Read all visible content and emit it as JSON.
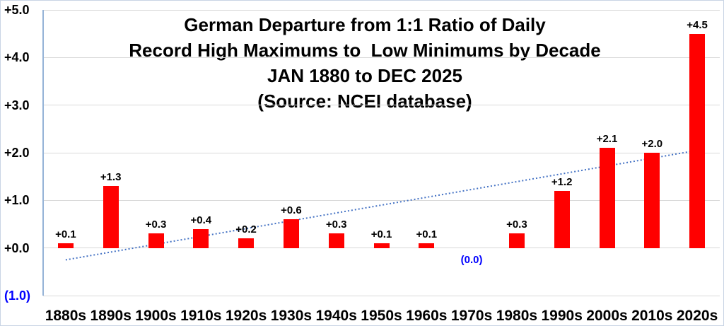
{
  "chart_data": {
    "type": "bar",
    "title_lines": [
      "German Departure from 1:1 Ratio of Daily",
      "Record High Maximums to  Low Minimums by Decade",
      "JAN 1880 to DEC 2025",
      "(Source: NCEI database)"
    ],
    "categories": [
      "1880s",
      "1890s",
      "1900s",
      "1910s",
      "1920s",
      "1930s",
      "1940s",
      "1950s",
      "1960s",
      "1970s",
      "1980s",
      "1990s",
      "2000s",
      "2010s",
      "2020s"
    ],
    "values": [
      0.1,
      1.3,
      0.3,
      0.4,
      0.2,
      0.6,
      0.3,
      0.1,
      0.1,
      0.0,
      0.3,
      1.2,
      2.1,
      2.0,
      4.5
    ],
    "bar_labels": [
      "+0.1",
      "+1.3",
      "+0.3",
      "+0.4",
      "+0.2",
      "+0.6",
      "+0.3",
      "+0.1",
      "+0.1",
      "(0.0)",
      "+0.3",
      "+1.2",
      "+2.1",
      "+2.0",
      "+4.5"
    ],
    "y_ticks": [
      {
        "label": "+5.0",
        "value": 5
      },
      {
        "label": "+4.0",
        "value": 4
      },
      {
        "label": "+3.0",
        "value": 3
      },
      {
        "label": "+2.0",
        "value": 2
      },
      {
        "label": "+1.0",
        "value": 1
      },
      {
        "label": "+0.0",
        "value": 0
      },
      {
        "label": "(1.0)",
        "value": -1,
        "negative": true
      }
    ],
    "ylim": [
      -1,
      5
    ],
    "xlabel": "",
    "ylabel": "",
    "gridlines": true,
    "legend": "none",
    "trendline": {
      "style": "dotted",
      "start_value": -0.25,
      "end_value": 2.05
    },
    "colors": {
      "bar": "#FF0000",
      "trendline": "#4472C4",
      "negative_label": "#0000FF",
      "gridline": "#D9D9D9",
      "axis_line": "#95B3D7",
      "text": "#000000"
    }
  }
}
